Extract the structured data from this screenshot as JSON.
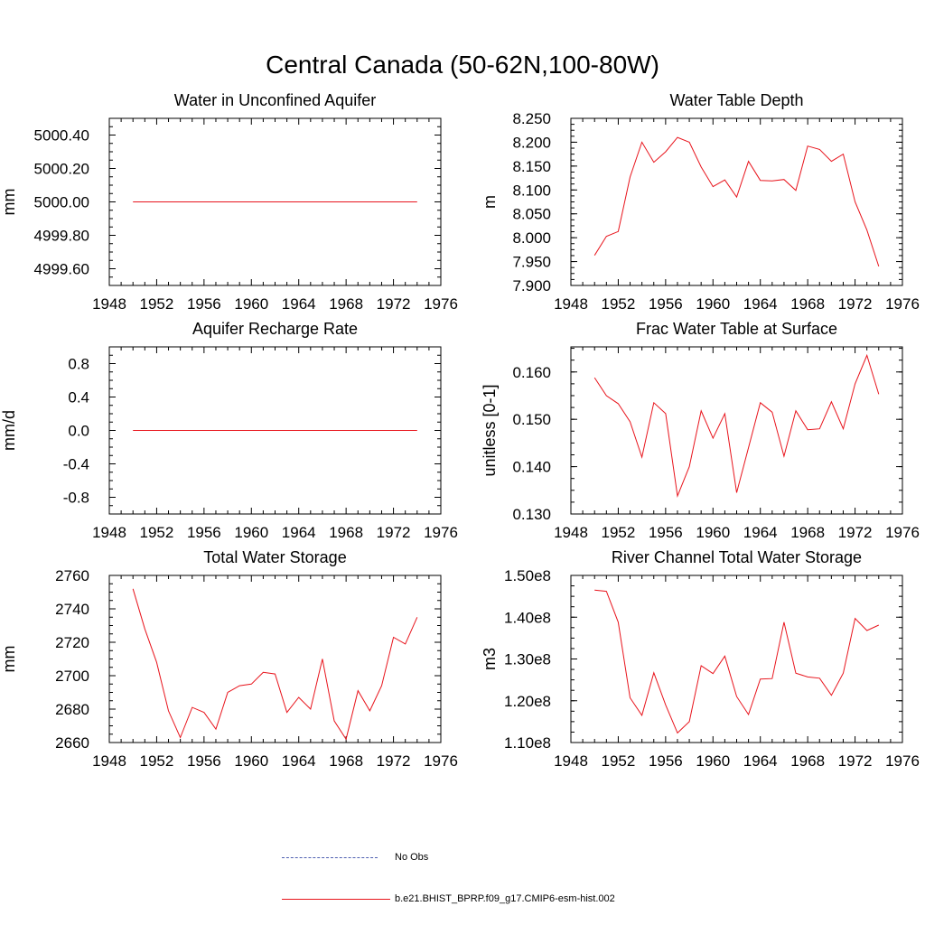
{
  "title": "Central Canada (50-62N,100-80W)",
  "colors": {
    "model": "#e8141c",
    "obs": "#4e5fb0",
    "axis": "#000000"
  },
  "legend": {
    "obs_label": "No Obs",
    "model_label": "b.e21.BHIST_BPRP.f09_g17.CMIP6-esm-hist.002"
  },
  "chart_data": [
    {
      "type": "line",
      "title": "Water in Unconfined Aquifer",
      "ylabel": "mm",
      "xlim": [
        1948,
        1976
      ],
      "xticks": [
        "1948",
        "1952",
        "1956",
        "1960",
        "1964",
        "1968",
        "1972",
        "1976"
      ],
      "ylim": [
        4999.5,
        5000.5
      ],
      "yticks": [
        {
          "v": 4999.6,
          "l": "4999.60"
        },
        {
          "v": 4999.8,
          "l": "4999.80"
        },
        {
          "v": 5000.0,
          "l": "5000.00"
        },
        {
          "v": 5000.2,
          "l": "5000.20"
        },
        {
          "v": 5000.4,
          "l": "5000.40"
        }
      ],
      "x": [
        1950,
        1951,
        1952,
        1953,
        1954,
        1955,
        1956,
        1957,
        1958,
        1959,
        1960,
        1961,
        1962,
        1963,
        1964,
        1965,
        1966,
        1967,
        1968,
        1969,
        1970,
        1971,
        1972,
        1973,
        1974
      ],
      "values": [
        5000,
        5000,
        5000,
        5000,
        5000,
        5000,
        5000,
        5000,
        5000,
        5000,
        5000,
        5000,
        5000,
        5000,
        5000,
        5000,
        5000,
        5000,
        5000,
        5000,
        5000,
        5000,
        5000,
        5000,
        5000
      ]
    },
    {
      "type": "line",
      "title": "Water Table Depth",
      "ylabel": "m",
      "xlim": [
        1948,
        1976
      ],
      "xticks": [
        "1948",
        "1952",
        "1956",
        "1960",
        "1964",
        "1968",
        "1972",
        "1976"
      ],
      "ylim": [
        7.9,
        8.25
      ],
      "yticks": [
        {
          "v": 7.9,
          "l": "7.900"
        },
        {
          "v": 7.95,
          "l": "7.950"
        },
        {
          "v": 8.0,
          "l": "8.000"
        },
        {
          "v": 8.05,
          "l": "8.050"
        },
        {
          "v": 8.1,
          "l": "8.100"
        },
        {
          "v": 8.15,
          "l": "8.150"
        },
        {
          "v": 8.2,
          "l": "8.200"
        },
        {
          "v": 8.25,
          "l": "8.250"
        }
      ],
      "x": [
        1950,
        1951,
        1952,
        1953,
        1954,
        1955,
        1956,
        1957,
        1958,
        1959,
        1960,
        1961,
        1962,
        1963,
        1964,
        1965,
        1966,
        1967,
        1968,
        1969,
        1970,
        1971,
        1972,
        1973,
        1974
      ],
      "values": [
        7.963,
        8.003,
        8.013,
        8.127,
        8.2,
        8.158,
        8.18,
        8.21,
        8.2,
        8.148,
        8.107,
        8.121,
        8.085,
        8.16,
        8.12,
        8.119,
        8.122,
        8.099,
        8.192,
        8.185,
        8.16,
        8.175,
        8.075,
        8.016,
        7.94
      ]
    },
    {
      "type": "line",
      "title": "Aquifer Recharge Rate",
      "ylabel": "mm/d",
      "xlim": [
        1948,
        1976
      ],
      "xticks": [
        "1948",
        "1952",
        "1956",
        "1960",
        "1964",
        "1968",
        "1972",
        "1976"
      ],
      "ylim": [
        -1.0,
        1.0
      ],
      "yticks": [
        {
          "v": -0.8,
          "l": "-0.8"
        },
        {
          "v": -0.4,
          "l": "-0.4"
        },
        {
          "v": 0.0,
          "l": "0.0"
        },
        {
          "v": 0.4,
          "l": "0.4"
        },
        {
          "v": 0.8,
          "l": "0.8"
        }
      ],
      "x": [
        1950,
        1951,
        1952,
        1953,
        1954,
        1955,
        1956,
        1957,
        1958,
        1959,
        1960,
        1961,
        1962,
        1963,
        1964,
        1965,
        1966,
        1967,
        1968,
        1969,
        1970,
        1971,
        1972,
        1973,
        1974
      ],
      "values": [
        0,
        0,
        0,
        0,
        0,
        0,
        0,
        0,
        0,
        0,
        0,
        0,
        0,
        0,
        0,
        0,
        0,
        0,
        0,
        0,
        0,
        0,
        0,
        0,
        0
      ]
    },
    {
      "type": "line",
      "title": "Frac Water Table at Surface",
      "ylabel": "unitless [0-1]",
      "xlim": [
        1948,
        1976
      ],
      "xticks": [
        "1948",
        "1952",
        "1956",
        "1960",
        "1964",
        "1968",
        "1972",
        "1976"
      ],
      "ylim": [
        0.13,
        0.1653
      ],
      "yticks": [
        {
          "v": 0.13,
          "l": "0.130"
        },
        {
          "v": 0.14,
          "l": "0.140"
        },
        {
          "v": 0.15,
          "l": "0.150"
        },
        {
          "v": 0.16,
          "l": "0.160"
        }
      ],
      "x": [
        1950,
        1951,
        1952,
        1953,
        1954,
        1955,
        1956,
        1957,
        1958,
        1959,
        1960,
        1961,
        1962,
        1963,
        1964,
        1965,
        1966,
        1967,
        1968,
        1969,
        1970,
        1971,
        1972,
        1973,
        1974
      ],
      "values": [
        0.1588,
        0.155,
        0.1533,
        0.1495,
        0.142,
        0.1535,
        0.1512,
        0.1338,
        0.14,
        0.1518,
        0.146,
        0.1512,
        0.1345,
        0.144,
        0.1535,
        0.1515,
        0.1422,
        0.1518,
        0.1478,
        0.148,
        0.1537,
        0.148,
        0.1575,
        0.1635,
        0.1553
      ]
    },
    {
      "type": "line",
      "title": "Total Water Storage",
      "ylabel": "mm",
      "xlim": [
        1948,
        1976
      ],
      "xticks": [
        "1948",
        "1952",
        "1956",
        "1960",
        "1964",
        "1968",
        "1972",
        "1976"
      ],
      "ylim": [
        2660,
        2760
      ],
      "yticks": [
        {
          "v": 2660,
          "l": "2660"
        },
        {
          "v": 2680,
          "l": "2680"
        },
        {
          "v": 2700,
          "l": "2700"
        },
        {
          "v": 2720,
          "l": "2720"
        },
        {
          "v": 2740,
          "l": "2740"
        },
        {
          "v": 2760,
          "l": "2760"
        }
      ],
      "x": [
        1950,
        1951,
        1952,
        1953,
        1954,
        1955,
        1956,
        1957,
        1958,
        1959,
        1960,
        1961,
        1962,
        1963,
        1964,
        1965,
        1966,
        1967,
        1968,
        1969,
        1970,
        1971,
        1972,
        1973,
        1974
      ],
      "values": [
        2752,
        2728,
        2708,
        2679,
        2663,
        2681,
        2678,
        2668,
        2690,
        2694,
        2695,
        2702,
        2701,
        2678,
        2687,
        2680,
        2710,
        2673,
        2662,
        2691,
        2679,
        2694,
        2723,
        2719,
        2735
      ]
    },
    {
      "type": "line",
      "title": "River Channel Total Water Storage",
      "ylabel": "m3",
      "xlim": [
        1948,
        1976
      ],
      "xticks": [
        "1948",
        "1952",
        "1956",
        "1960",
        "1964",
        "1968",
        "1972",
        "1976"
      ],
      "ylim": [
        110000000,
        150000000
      ],
      "yticks": [
        {
          "v": 110000000,
          "l": "1.10e8"
        },
        {
          "v": 120000000,
          "l": "1.20e8"
        },
        {
          "v": 130000000,
          "l": "1.30e8"
        },
        {
          "v": 140000000,
          "l": "1.40e8"
        },
        {
          "v": 150000000,
          "l": "1.50e8"
        }
      ],
      "x": [
        1950,
        1951,
        1952,
        1953,
        1954,
        1955,
        1956,
        1957,
        1958,
        1959,
        1960,
        1961,
        1962,
        1963,
        1964,
        1965,
        1966,
        1967,
        1968,
        1969,
        1970,
        1971,
        1972,
        1973,
        1974
      ],
      "values": [
        146500000,
        146200000,
        138800000,
        120700000,
        116500000,
        126700000,
        119000000,
        112300000,
        115000000,
        128400000,
        126500000,
        130700000,
        121000000,
        116700000,
        125200000,
        125300000,
        138800000,
        126600000,
        125700000,
        125400000,
        121300000,
        126600000,
        139700000,
        136800000,
        138100000
      ]
    }
  ]
}
